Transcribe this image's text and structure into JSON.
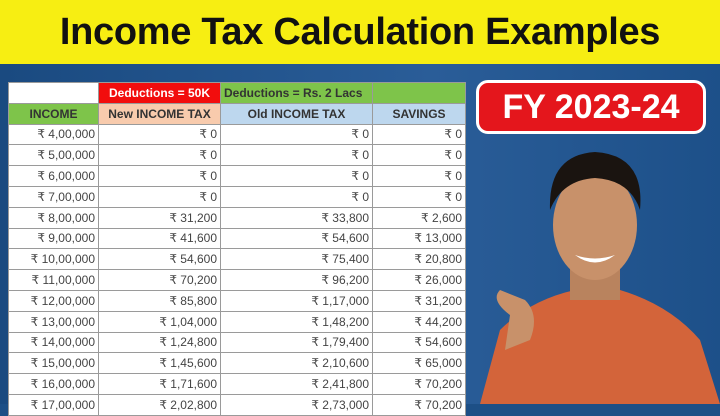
{
  "title": "Income Tax Calculation Examples",
  "badge": "FY 2023-24",
  "table": {
    "group_headers": [
      "",
      "Deductions = 50K",
      "Deductions = Rs. 2 Lacs",
      ""
    ],
    "headers": [
      "INCOME",
      "New INCOME TAX",
      "Old INCOME TAX",
      "SAVINGS"
    ],
    "rows": [
      [
        "₹ 4,00,000",
        "₹ 0",
        "₹ 0",
        "₹ 0"
      ],
      [
        "₹ 5,00,000",
        "₹ 0",
        "₹ 0",
        "₹ 0"
      ],
      [
        "₹ 6,00,000",
        "₹ 0",
        "₹ 0",
        "₹ 0"
      ],
      [
        "₹ 7,00,000",
        "₹ 0",
        "₹ 0",
        "₹ 0"
      ],
      [
        "₹ 8,00,000",
        "₹ 31,200",
        "₹ 33,800",
        "₹ 2,600"
      ],
      [
        "₹ 9,00,000",
        "₹ 41,600",
        "₹ 54,600",
        "₹ 13,000"
      ],
      [
        "₹ 10,00,000",
        "₹ 54,600",
        "₹ 75,400",
        "₹ 20,800"
      ],
      [
        "₹ 11,00,000",
        "₹ 70,200",
        "₹ 96,200",
        "₹ 26,000"
      ],
      [
        "₹ 12,00,000",
        "₹ 85,800",
        "₹ 1,17,000",
        "₹ 31,200"
      ],
      [
        "₹ 13,00,000",
        "₹ 1,04,000",
        "₹ 1,48,200",
        "₹ 44,200"
      ],
      [
        "₹ 14,00,000",
        "₹ 1,24,800",
        "₹ 1,79,400",
        "₹ 54,600"
      ],
      [
        "₹ 15,00,000",
        "₹ 1,45,600",
        "₹ 2,10,600",
        "₹ 65,000"
      ],
      [
        "₹ 16,00,000",
        "₹ 1,71,600",
        "₹ 2,41,800",
        "₹ 70,200"
      ],
      [
        "₹ 17,00,000",
        "₹ 2,02,800",
        "₹ 2,73,000",
        "₹ 70,200"
      ]
    ]
  },
  "colors": {
    "title_bg": "#f7ee12",
    "badge_bg": "#e4161c",
    "background": "#1d4f86"
  }
}
